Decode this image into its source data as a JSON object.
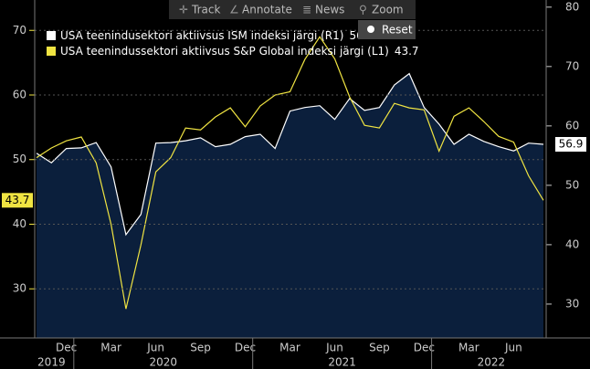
{
  "toolbar": [
    "Track",
    "Annotate",
    "News",
    "Zoom",
    "Reset"
  ],
  "chart_data": {
    "type": "line",
    "categories": [
      null,
      null,
      "Dec",
      null,
      null,
      "Mar",
      null,
      null,
      "Jun",
      null,
      null,
      "Sep",
      null,
      null,
      "Dec",
      null,
      null,
      "Mar",
      null,
      null,
      "Jun",
      null,
      null,
      "Sep",
      null,
      null,
      "Dec",
      null,
      null,
      "Mar",
      null,
      null,
      "Jun",
      null,
      null
    ],
    "year_labels": [
      {
        "label": "2019",
        "start": 0,
        "end": 2
      },
      {
        "label": "2020",
        "start": 3,
        "end": 14
      },
      {
        "label": "2021",
        "start": 15,
        "end": 26
      },
      {
        "label": "2022",
        "start": 27,
        "end": 34
      }
    ],
    "ylim": [
      22.4,
      74.7
    ],
    "yticks": [
      30,
      40,
      50,
      60,
      70
    ],
    "y2lim": [
      24.3,
      81.2
    ],
    "y2ticks": [
      30,
      40,
      50,
      60,
      70,
      80
    ],
    "grid": true,
    "series": [
      {
        "name": "USA teenindusektori aktiivsus ISM indeksi järgi (R1)",
        "color": "#ffffff",
        "fill": "#0b1f3c",
        "axis": "y2",
        "values": [
          55.4,
          53.8,
          56.2,
          56.3,
          57.2,
          53.1,
          41.7,
          45.1,
          57.1,
          57.2,
          57.5,
          58.0,
          56.5,
          56.9,
          58.2,
          58.6,
          56.2,
          62.5,
          63.1,
          63.4,
          61.1,
          64.6,
          62.6,
          63.1,
          66.9,
          68.8,
          63.1,
          60.3,
          56.9,
          58.6,
          57.4,
          56.5,
          55.8,
          57.1,
          56.9
        ]
      },
      {
        "name": "USA teenindussektori aktiivsus S&P Global indeksi järgi (L1)",
        "color": "#f0e442",
        "axis": "y",
        "values": [
          50.3,
          51.8,
          52.9,
          53.5,
          49.5,
          40.0,
          26.9,
          36.8,
          48.1,
          50.3,
          54.9,
          54.6,
          56.6,
          58.0,
          55.1,
          58.3,
          60.0,
          60.5,
          65.5,
          69.0,
          65.6,
          59.7,
          55.3,
          54.9,
          58.7,
          58.0,
          57.7,
          51.3,
          56.7,
          58.0,
          55.9,
          53.6,
          52.7,
          47.5,
          43.7
        ]
      }
    ]
  }
}
